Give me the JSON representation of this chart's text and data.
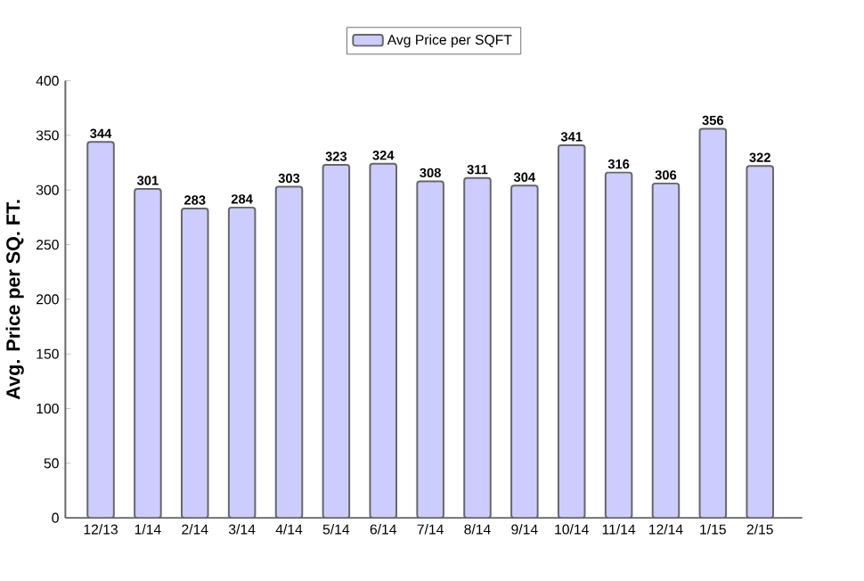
{
  "chart_data": {
    "type": "bar",
    "ylabel": "Avg. Price per SQ. FT.",
    "categories": [
      "12/13",
      "1/14",
      "2/14",
      "3/14",
      "4/14",
      "5/14",
      "6/14",
      "7/14",
      "8/14",
      "9/14",
      "10/14",
      "11/14",
      "12/14",
      "1/15",
      "2/15"
    ],
    "series": [
      {
        "name": "Avg Price per SQFT",
        "color": "#ccccff",
        "values": [
          344,
          301,
          283,
          284,
          303,
          323,
          324,
          308,
          311,
          304,
          341,
          316,
          306,
          356,
          322
        ]
      }
    ],
    "ylim": [
      0,
      400
    ],
    "yticks": [
      0,
      50,
      100,
      150,
      200,
      250,
      300,
      350,
      400
    ],
    "data_labels": true,
    "legend": "top",
    "grid": false
  }
}
